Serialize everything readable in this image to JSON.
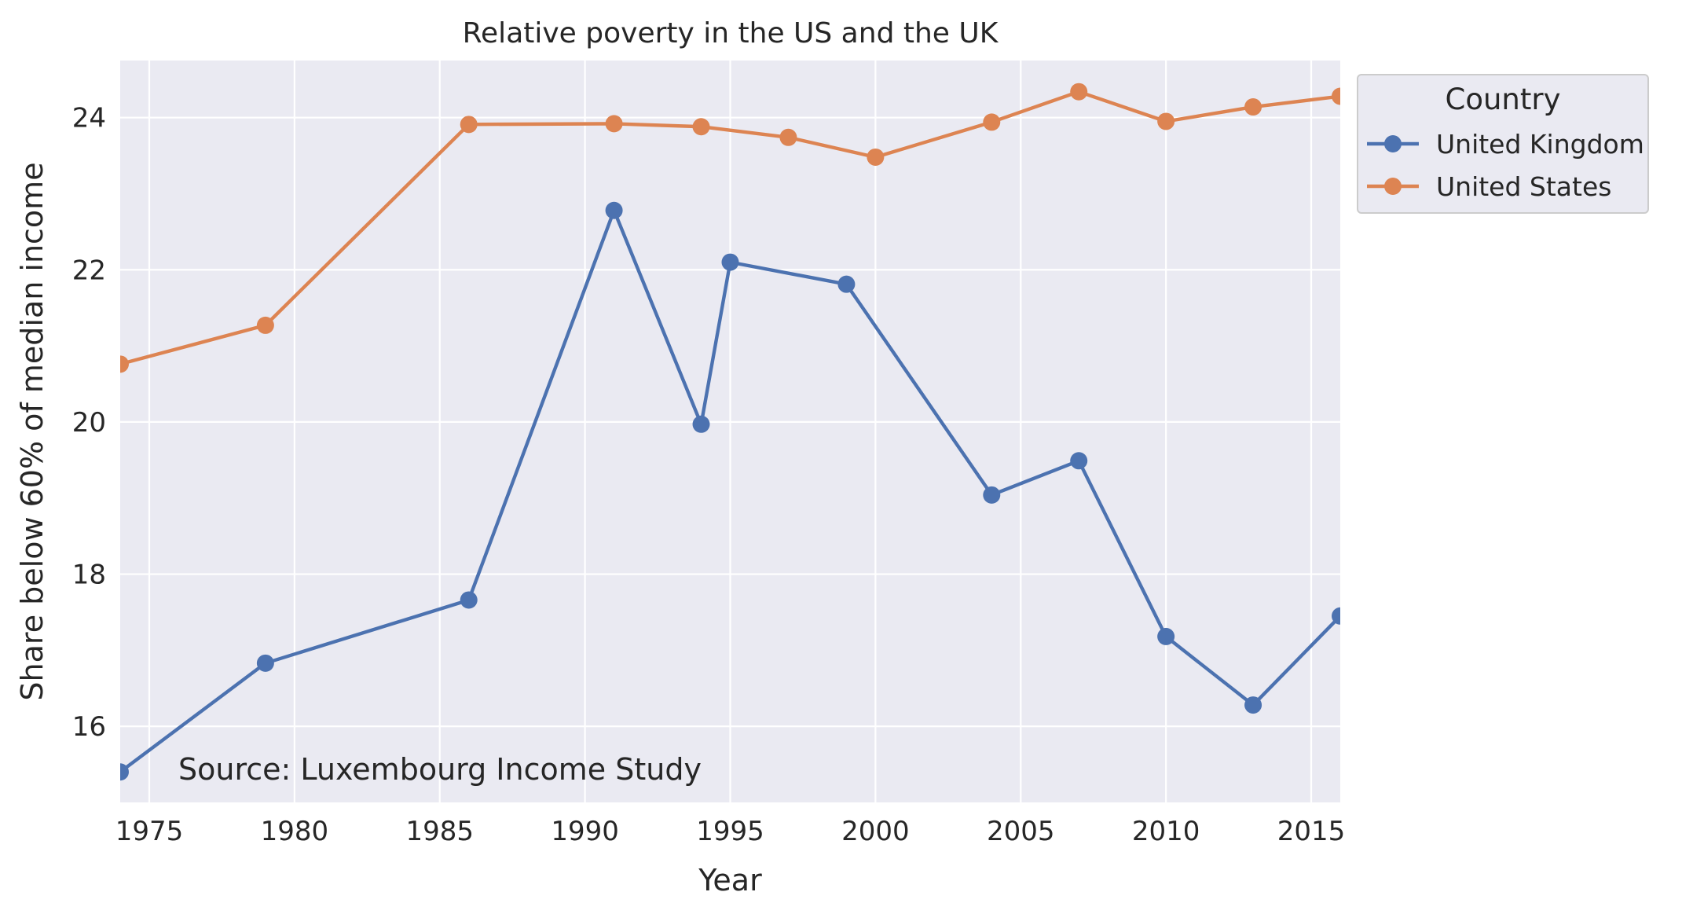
{
  "chart_data": {
    "type": "line",
    "title": "Relative poverty in the US and the UK",
    "xlabel": "Year",
    "ylabel": "Share below 60% of median income",
    "xlim": [
      1974,
      2016
    ],
    "ylim": [
      15.0,
      24.75
    ],
    "xticks": [
      1975,
      1980,
      1985,
      1990,
      1995,
      2000,
      2005,
      2010,
      2015
    ],
    "yticks": [
      16,
      18,
      20,
      22,
      24
    ],
    "grid": true,
    "legend": {
      "title": "Country",
      "placement": "outside-top-right"
    },
    "annotation": "Source: Luxembourg Income Study",
    "series": [
      {
        "name": "United Kingdom",
        "color": "#4c72b0",
        "marker": "circle",
        "x": [
          1974,
          1979,
          1986,
          1991,
          1994,
          1995,
          1999,
          2004,
          2007,
          2010,
          2013,
          2016
        ],
        "y": [
          15.4,
          16.83,
          17.66,
          22.78,
          19.97,
          22.1,
          21.81,
          19.04,
          19.49,
          17.18,
          16.28,
          17.45
        ]
      },
      {
        "name": "United States",
        "color": "#dd8452",
        "marker": "circle",
        "x": [
          1974,
          1979,
          1986,
          1991,
          1994,
          1997,
          2000,
          2004,
          2007,
          2010,
          2013,
          2016
        ],
        "y": [
          20.76,
          21.27,
          23.91,
          23.92,
          23.88,
          23.74,
          23.48,
          23.94,
          24.34,
          23.95,
          24.14,
          24.28
        ]
      }
    ]
  }
}
